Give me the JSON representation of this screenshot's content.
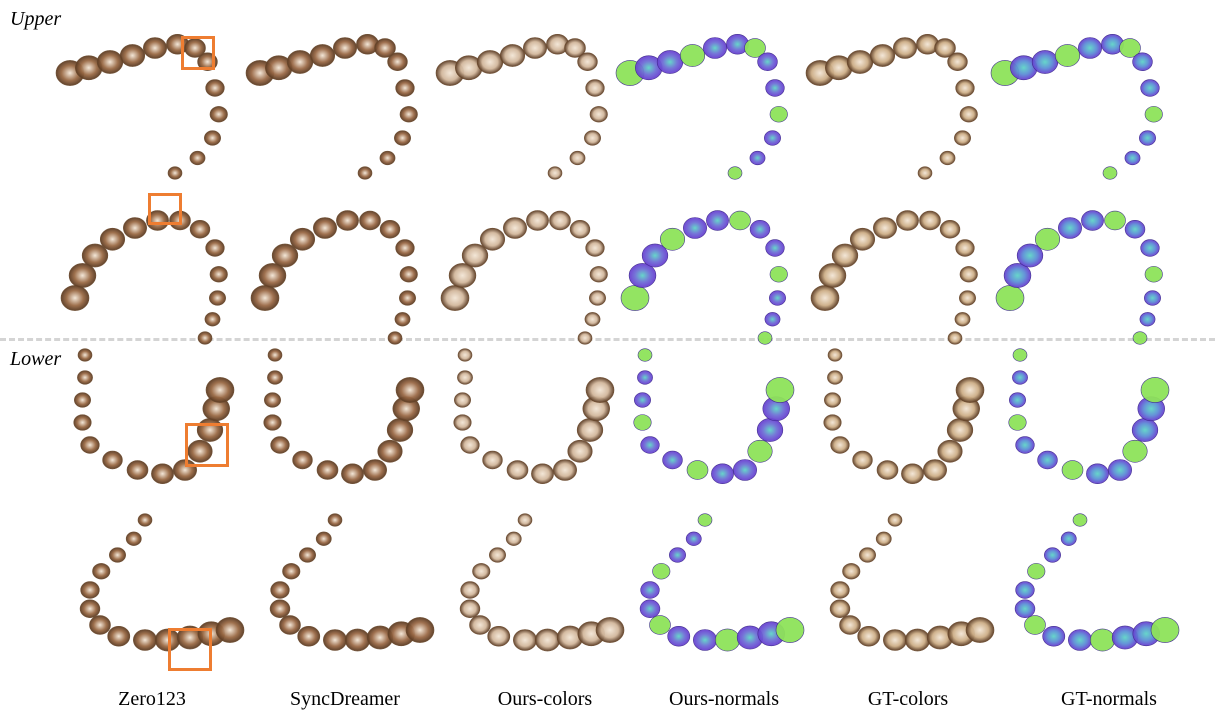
{
  "figure": {
    "sections": [
      {
        "label": "Upper"
      },
      {
        "label": "Lower"
      }
    ],
    "columns": [
      {
        "label": "Zero123",
        "tint": "#9a6a45",
        "type": "color"
      },
      {
        "label": "SyncDreamer",
        "tint": "#9b6a47",
        "type": "color"
      },
      {
        "label": "Ours-colors",
        "tint": "#d2b79c",
        "type": "color"
      },
      {
        "label": "Ours-normals",
        "tint": "#6f6fd6",
        "type": "normal"
      },
      {
        "label": "GT-colors",
        "tint": "#cdae87",
        "type": "color"
      },
      {
        "label": "GT-normals",
        "tint": "#5d8fd6",
        "type": "normal"
      }
    ],
    "colors": {
      "highlight": "#ee7d31",
      "divider": "#d4d4d4",
      "normal_cyan": "#5fd4c8",
      "normal_violet": "#6a3ed1",
      "normal_green": "#8ee35a"
    }
  }
}
